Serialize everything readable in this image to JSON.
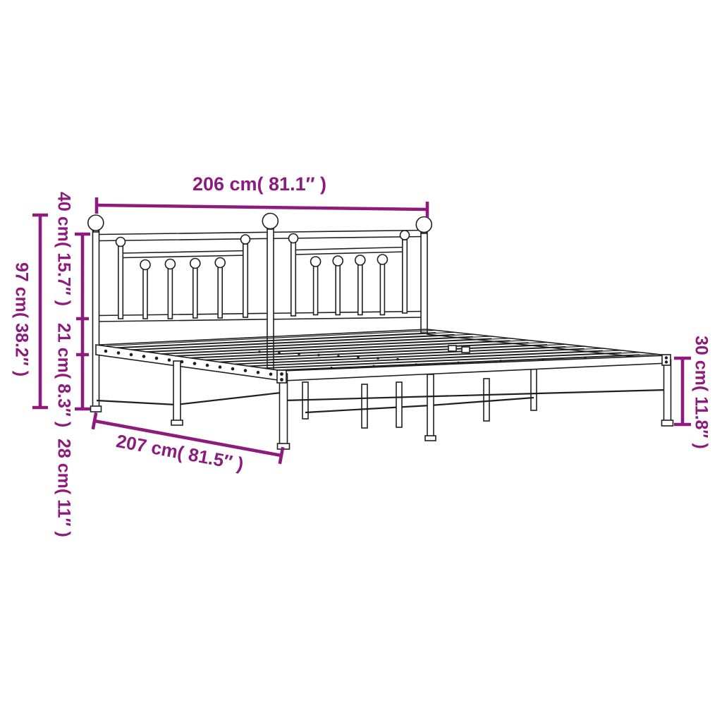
{
  "diagram": {
    "type": "product-dimension-diagram",
    "subject": "metal bed frame with headboard",
    "accent_color": "#8D1B7E",
    "line_color": "#1f1f1f",
    "background_color": "#ffffff",
    "dimensions": {
      "headboard_width": "206 cm( 81.1″ )",
      "frame_length": "207 cm( 81.5″ )",
      "headboard_total_height": "97 cm( 38.2″ )",
      "headboard_upper_section_height": "40 cm( 15.7″ )",
      "headboard_lower_section_height": "21 cm( 8.3″ )",
      "underbed_clearance_height": "28 cm( 11″ )",
      "platform_side_height": "30 cm( 11.8″ )"
    }
  }
}
